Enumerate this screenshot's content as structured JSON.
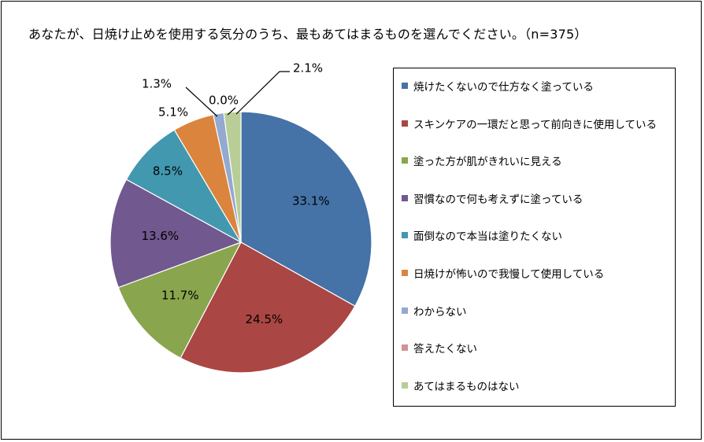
{
  "chart_data": {
    "type": "pie",
    "title": "あなたが、日焼け止めを使用する気分のうち、最もあてはまるものを選んでください。（n=375）",
    "legend_position": "right",
    "slices": [
      {
        "label": "焼けたくないので仕方なく塗っている",
        "value": 33.1,
        "value_label": "33.1%",
        "color": "#4572A7"
      },
      {
        "label": "スキンケアの一環だと思って前向きに使用している",
        "value": 24.5,
        "value_label": "24.5%",
        "color": "#AA4643"
      },
      {
        "label": "塗った方が肌がきれいに見える",
        "value": 11.7,
        "value_label": "11.7%",
        "color": "#89A54E"
      },
      {
        "label": "習慣なので何も考えずに塗っている",
        "value": 13.6,
        "value_label": "13.6%",
        "color": "#71588F"
      },
      {
        "label": "面倒なので本当は塗りたくない",
        "value": 8.5,
        "value_label": "8.5%",
        "color": "#4198AF"
      },
      {
        "label": "日焼けが怖いので我慢して使用している",
        "value": 5.1,
        "value_label": "5.1%",
        "color": "#DB843D"
      },
      {
        "label": "わからない",
        "value": 1.3,
        "value_label": "1.3%",
        "color": "#93A9CF"
      },
      {
        "label": "答えたくない",
        "value": 0.0,
        "value_label": "0.0%",
        "color": "#D19392"
      },
      {
        "label": "あてはまるものはない",
        "value": 2.1,
        "value_label": "2.1%",
        "color": "#B9CD96"
      }
    ]
  }
}
